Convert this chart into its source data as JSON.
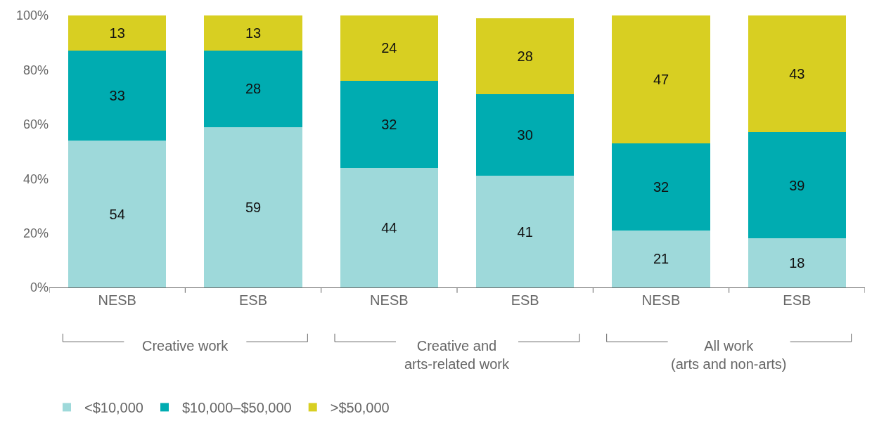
{
  "chart_data": {
    "type": "bar",
    "stacked": true,
    "categories": [
      "NESB",
      "ESB",
      "NESB",
      "ESB",
      "NESB",
      "ESB"
    ],
    "series": [
      {
        "name": "<$10,000",
        "color": "#9ed9da",
        "values": [
          54,
          59,
          44,
          41,
          21,
          18
        ]
      },
      {
        "name": "$10,000–$50,000",
        "color": "#00acb1",
        "values": [
          33,
          28,
          32,
          30,
          32,
          39
        ]
      },
      {
        "name": ">$50,000",
        "color": "#d8cf22",
        "values": [
          13,
          13,
          24,
          28,
          47,
          43
        ]
      }
    ],
    "ylim": [
      0,
      100
    ],
    "yticks": [
      {
        "value": 0,
        "label": "0%"
      },
      {
        "value": 20,
        "label": "20%"
      },
      {
        "value": 40,
        "label": "40%"
      },
      {
        "value": 60,
        "label": "60%"
      },
      {
        "value": 80,
        "label": "80%"
      },
      {
        "value": 100,
        "label": "100%"
      }
    ],
    "data_labels": true,
    "legend": "bottom left",
    "annotations": [
      "Creative work",
      "Creative and\narts-related work",
      "All work\n(arts and non-arts)"
    ]
  }
}
